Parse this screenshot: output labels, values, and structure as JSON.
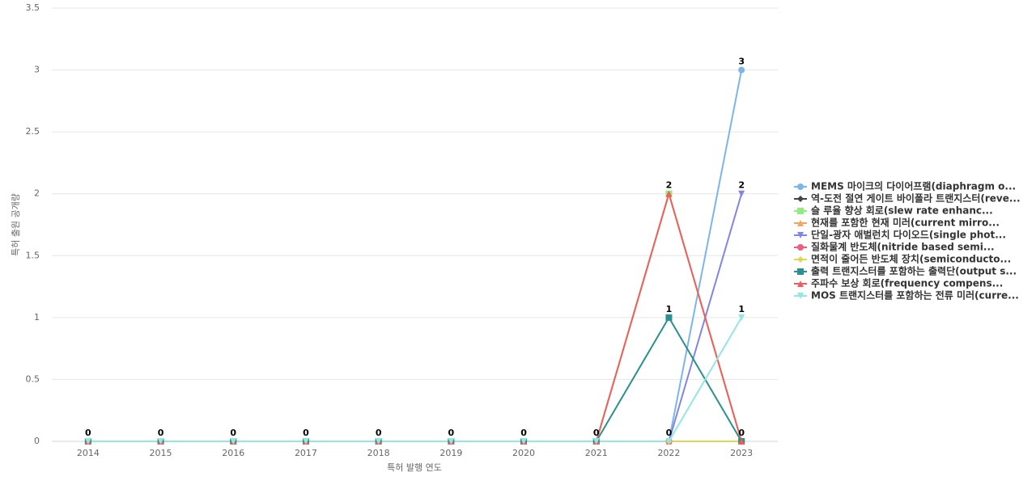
{
  "chart_data": {
    "type": "line",
    "x_label": "특허 발행 연도",
    "y_label": "특허 출원 공개량",
    "categories": [
      "2014",
      "2015",
      "2016",
      "2017",
      "2018",
      "2019",
      "2020",
      "2021",
      "2022",
      "2023"
    ],
    "ylim": [
      0,
      3.5
    ],
    "yticks": [
      0,
      0.5,
      1,
      1.5,
      2,
      2.5,
      3,
      3.5
    ],
    "grid": true,
    "legend": "right",
    "series": [
      {
        "name": "MEMS 마이크의 다이어프램(diaphragm o...",
        "color": "#7cb5ec",
        "marker": "circle",
        "values": [
          0,
          0,
          0,
          0,
          0,
          0,
          0,
          0,
          0,
          3
        ]
      },
      {
        "name": "역-도전 절연 게이트 바이폴라 트랜지스터(reve...",
        "color": "#434348",
        "marker": "diamond",
        "values": [
          0,
          0,
          0,
          0,
          0,
          0,
          0,
          0,
          0,
          0
        ]
      },
      {
        "name": "슬 루율 향상 회로(slew rate enhanc...",
        "color": "#90ed7d",
        "marker": "square",
        "values": [
          0,
          0,
          0,
          0,
          0,
          0,
          0,
          0,
          2,
          0
        ]
      },
      {
        "name": "현재를 포함한 현재 미러(current mirro...",
        "color": "#f7a35c",
        "marker": "triangle",
        "values": [
          0,
          0,
          0,
          0,
          0,
          0,
          0,
          0,
          0,
          0
        ]
      },
      {
        "name": "단일-광자 애벌런치 다이오드(single phot...",
        "color": "#8085e9",
        "marker": "triangle-down",
        "values": [
          0,
          0,
          0,
          0,
          0,
          0,
          0,
          0,
          0,
          2
        ]
      },
      {
        "name": "질화물계 반도체(nitride based semi...",
        "color": "#f15c80",
        "marker": "circle",
        "values": [
          0,
          0,
          0,
          0,
          0,
          0,
          0,
          0,
          0,
          0
        ]
      },
      {
        "name": "면적이 줄어든 반도체 장치(semiconducto...",
        "color": "#e4d354",
        "marker": "diamond",
        "values": [
          0,
          0,
          0,
          0,
          0,
          0,
          0,
          0,
          0,
          0
        ]
      },
      {
        "name": "출력 트랜지스터를 포함하는 출력단(output s...",
        "color": "#2b908f",
        "marker": "square",
        "values": [
          0,
          0,
          0,
          0,
          0,
          0,
          0,
          0,
          1,
          0
        ]
      },
      {
        "name": "주파수 보상 회로(frequency compens...",
        "color": "#f45b5b",
        "marker": "triangle",
        "values": [
          0,
          0,
          0,
          0,
          0,
          0,
          0,
          0,
          2,
          0
        ]
      },
      {
        "name": "MOS 트랜지스터를 포함하는 전류 미러(curre...",
        "color": "#91e8e1",
        "marker": "triangle-down",
        "values": [
          0,
          0,
          0,
          0,
          0,
          0,
          0,
          0,
          0,
          1
        ]
      }
    ]
  }
}
